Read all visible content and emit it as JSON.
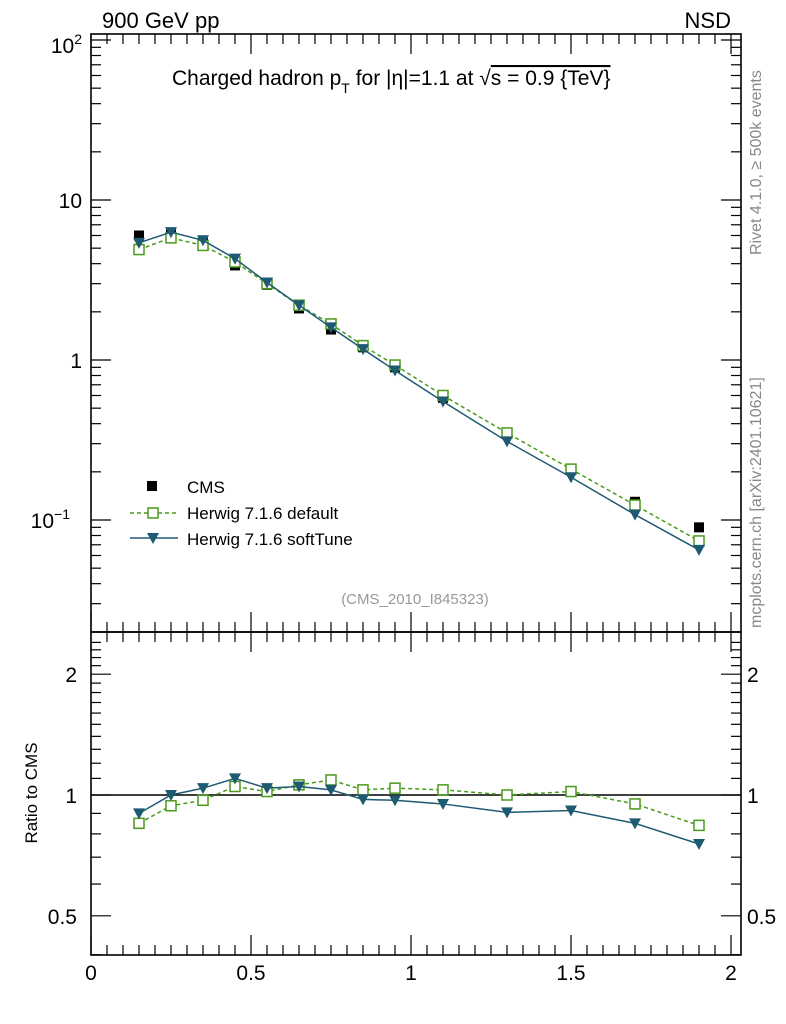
{
  "header": {
    "left": "900 GeV pp",
    "right": "NSD"
  },
  "side_labels": {
    "rivet": "Rivet 4.1.0, ≥ 500k events",
    "mcplots": "mcplots.cern.ch [arXiv:2401.10621]"
  },
  "analysis_id": "(CMS_2010_I845323)",
  "colors": {
    "default": "#4a9a1a",
    "softtune": "#1e5a72",
    "data": "#000000"
  },
  "chart_data": [
    {
      "type": "scatter",
      "title": "Charged hadron p_T for |η|=1.1 at √s = 0.9 {TeV}",
      "title_parts": {
        "a": "Charged hadron p",
        "sub": "T",
        "b": " for |η|=1.1 at ",
        "root": "√",
        "c": "s = 0.9 {TeV}"
      },
      "yscale": "log",
      "xlim": [
        0,
        2
      ],
      "ylim": [
        0.025,
        110
      ],
      "ytick_labels": [
        "10",
        "1"
      ],
      "ytick_exp_labels": [
        {
          "base": "10",
          "exp": "2"
        },
        {
          "base": "10",
          "exp": "−1"
        }
      ],
      "x": [
        0.15,
        0.25,
        0.35,
        0.45,
        0.55,
        0.65,
        0.75,
        0.85,
        0.95,
        1.1,
        1.3,
        1.5,
        1.7,
        1.9
      ],
      "series": [
        {
          "name": "CMS",
          "marker": "square-filled",
          "values": [
            6.0,
            6.2,
            5.4,
            3.9,
            2.95,
            2.1,
            1.55,
            1.2,
            0.9,
            0.58,
            0.35,
            0.205,
            0.13,
            0.09
          ]
        },
        {
          "name": "Herwig 7.1.6 default",
          "marker": "square-open",
          "line": "dashed",
          "values": [
            4.9,
            5.8,
            5.2,
            4.1,
            3.0,
            2.2,
            1.68,
            1.23,
            0.93,
            0.6,
            0.35,
            0.208,
            0.124,
            0.074
          ]
        },
        {
          "name": "Herwig 7.1.6 softTune",
          "marker": "triangle-down",
          "line": "solid",
          "values": [
            5.4,
            6.3,
            5.6,
            4.3,
            3.05,
            2.2,
            1.6,
            1.17,
            0.86,
            0.55,
            0.31,
            0.185,
            0.108,
            0.065
          ]
        }
      ],
      "legend_position": "lower-left"
    },
    {
      "type": "line",
      "ylabel": "Ratio to CMS",
      "yscale": "log",
      "xlim": [
        0,
        2
      ],
      "ylim": [
        0.4,
        2.4
      ],
      "xtick_labels": [
        "0",
        "0.5",
        "1",
        "1.5",
        "2"
      ],
      "ytick_labels": [
        "0.5",
        "1",
        "2"
      ],
      "x": [
        0.15,
        0.25,
        0.35,
        0.45,
        0.55,
        0.65,
        0.75,
        0.85,
        0.95,
        1.1,
        1.3,
        1.5,
        1.7,
        1.9
      ],
      "series": [
        {
          "name": "Herwig 7.1.6 default",
          "marker": "square-open",
          "line": "dashed",
          "values": [
            0.85,
            0.94,
            0.97,
            1.05,
            1.02,
            1.06,
            1.09,
            1.03,
            1.04,
            1.03,
            1.0,
            1.02,
            0.95,
            0.84
          ]
        },
        {
          "name": "Herwig 7.1.6 softTune",
          "marker": "triangle-down",
          "line": "solid",
          "values": [
            0.9,
            1.0,
            1.04,
            1.1,
            1.04,
            1.05,
            1.03,
            0.975,
            0.97,
            0.95,
            0.905,
            0.915,
            0.85,
            0.755
          ]
        }
      ]
    }
  ]
}
